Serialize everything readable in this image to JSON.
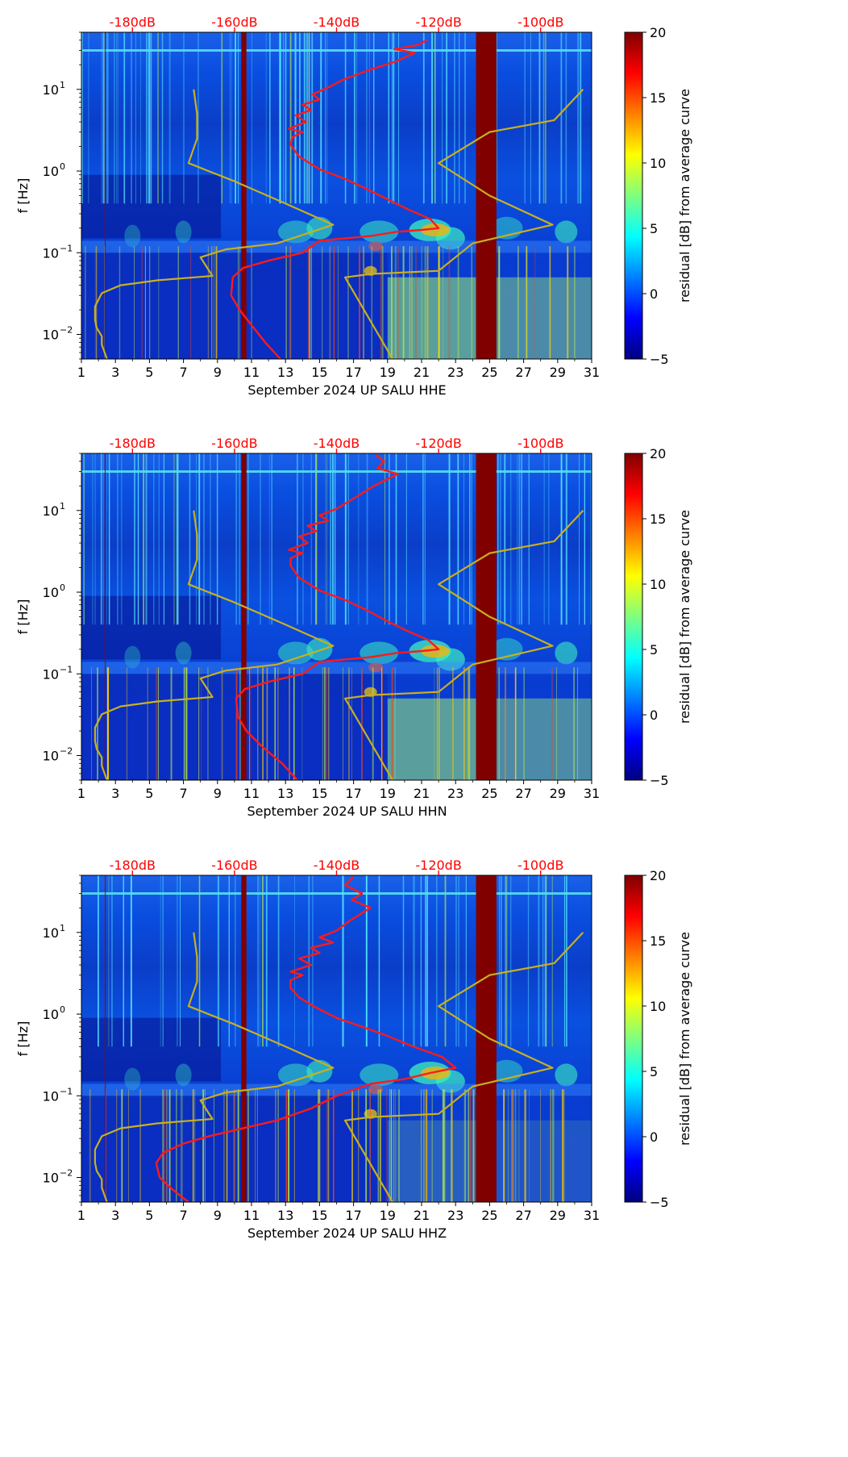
{
  "colors": {
    "psd_curve": "#ff1a1a",
    "model_curve": "#c8b020",
    "top_label": "#ff0000",
    "gap_band": "#800000",
    "background": "#00008f"
  },
  "colormap": [
    "#00007f",
    "#0000ff",
    "#007fff",
    "#00ffff",
    "#7fff7f",
    "#ffff00",
    "#ff7f00",
    "#ff0000",
    "#7f0000"
  ],
  "chart_data": [
    {
      "type": "heatmap",
      "title": "",
      "xlabel": "September 2024 UP SALU  HHE",
      "ylabel": "f [Hz]",
      "xlim": [
        1,
        31
      ],
      "ylim": [
        0.005,
        50
      ],
      "yscale": "log",
      "x_ticks": [
        "1",
        "3",
        "5",
        "7",
        "9",
        "11",
        "13",
        "15",
        "17",
        "19",
        "21",
        "23",
        "25",
        "27",
        "29",
        "31"
      ],
      "y_ticks": [
        {
          "value": 0.01,
          "base": "10",
          "exp": "−2"
        },
        {
          "value": 0.1,
          "base": "10",
          "exp": "−1"
        },
        {
          "value": 1,
          "base": "10",
          "exp": "0"
        },
        {
          "value": 10,
          "base": "10",
          "exp": "1"
        }
      ],
      "top_axis": [
        {
          "value": 4,
          "label": "-180dB"
        },
        {
          "value": 10,
          "label": "-160dB"
        },
        {
          "value": 16,
          "label": "-140dB"
        },
        {
          "value": 22,
          "label": "-120dB"
        },
        {
          "value": 28,
          "label": "-100dB"
        }
      ],
      "colorbar": {
        "label": "residual [dB] from average curve",
        "min": -5,
        "max": 20,
        "ticks": [
          "−5",
          "0",
          "5",
          "10",
          "15",
          "20"
        ]
      },
      "data_gaps": [
        [
          10.4,
          10.7
        ],
        [
          24.2,
          25.4
        ]
      ],
      "series": [
        {
          "name": "PSD average",
          "color": "#ff1a1a",
          "x": [
            12.7,
            11.8,
            11.0,
            10.3,
            9.8,
            9.9,
            10.5,
            12.0,
            14.0,
            15.0,
            16.5,
            18.0,
            19.5,
            21.0,
            22.0,
            21.5,
            20.2,
            19.0,
            17.8,
            16.5,
            15.0,
            13.8,
            13.3,
            13.4,
            14.0,
            13.2,
            14.2,
            13.6,
            14.5,
            14.0,
            15.0,
            14.6,
            15.5,
            16.5,
            18.0,
            19.5,
            20.6,
            19.4,
            20.8,
            21.3
          ],
          "y": [
            0.005,
            0.008,
            0.013,
            0.02,
            0.03,
            0.05,
            0.065,
            0.08,
            0.1,
            0.14,
            0.15,
            0.16,
            0.18,
            0.19,
            0.2,
            0.26,
            0.34,
            0.45,
            0.6,
            0.8,
            1.05,
            1.5,
            2.1,
            2.6,
            3.0,
            3.3,
            4.0,
            4.8,
            5.6,
            6.5,
            7.5,
            8.7,
            10.5,
            13.5,
            17.5,
            22.0,
            28.0,
            31.0,
            35.0,
            40.0
          ]
        },
        {
          "name": "noise model",
          "color": "#c8b020",
          "x": [
            2.5,
            2.2,
            2.2,
            1.9,
            1.8,
            1.8,
            2.2,
            3.3,
            5.5,
            8.7,
            8.0,
            9.5,
            12.5,
            15.8,
            13.0,
            10.0,
            7.3,
            7.8,
            7.8,
            7.6
          ],
          "y": [
            0.005,
            0.0075,
            0.0095,
            0.012,
            0.015,
            0.022,
            0.032,
            0.04,
            0.046,
            0.052,
            0.088,
            0.11,
            0.13,
            0.22,
            0.4,
            0.75,
            1.25,
            2.5,
            5.0,
            10.0
          ]
        },
        {
          "name": "noise model upper",
          "color": "#c8b020",
          "x": [
            19.3,
            16.5,
            18.0,
            22.0,
            24.0,
            28.7,
            25.0,
            22.0,
            25.0,
            28.8,
            30.5
          ],
          "y": [
            0.005,
            0.05,
            0.055,
            0.06,
            0.13,
            0.22,
            0.5,
            1.25,
            3.0,
            4.2,
            10.0
          ]
        }
      ]
    },
    {
      "type": "heatmap",
      "title": "",
      "xlabel": "September 2024 UP SALU  HHN",
      "ylabel": "f [Hz]",
      "xlim": [
        1,
        31
      ],
      "ylim": [
        0.005,
        50
      ],
      "yscale": "log",
      "x_ticks": [
        "1",
        "3",
        "5",
        "7",
        "9",
        "11",
        "13",
        "15",
        "17",
        "19",
        "21",
        "23",
        "25",
        "27",
        "29",
        "31"
      ],
      "y_ticks": [
        {
          "value": 0.01,
          "base": "10",
          "exp": "−2"
        },
        {
          "value": 0.1,
          "base": "10",
          "exp": "−1"
        },
        {
          "value": 1,
          "base": "10",
          "exp": "0"
        },
        {
          "value": 10,
          "base": "10",
          "exp": "1"
        }
      ],
      "top_axis": [
        {
          "value": 4,
          "label": "-180dB"
        },
        {
          "value": 10,
          "label": "-160dB"
        },
        {
          "value": 16,
          "label": "-140dB"
        },
        {
          "value": 22,
          "label": "-120dB"
        },
        {
          "value": 28,
          "label": "-100dB"
        }
      ],
      "colorbar": {
        "label": "residual [dB] from average curve",
        "min": -5,
        "max": 20,
        "ticks": [
          "−5",
          "0",
          "5",
          "10",
          "15",
          "20"
        ]
      },
      "data_gaps": [
        [
          10.4,
          10.7
        ],
        [
          24.2,
          25.4
        ]
      ],
      "series": [
        {
          "name": "PSD average",
          "color": "#ff1a1a",
          "x": [
            13.7,
            12.8,
            11.6,
            10.7,
            10.2,
            10.1,
            10.6,
            12.0,
            14.0,
            15.0,
            16.5,
            18.0,
            19.5,
            21.0,
            22.0,
            21.4,
            20.1,
            18.9,
            17.8,
            16.5,
            15.0,
            13.8,
            13.3,
            13.3,
            14.0,
            13.2,
            14.3,
            13.8,
            14.8,
            14.3,
            15.5,
            15.0,
            16.0,
            17.0,
            18.2,
            19.6,
            18.4,
            18.8,
            18.3
          ],
          "y": [
            0.005,
            0.008,
            0.013,
            0.02,
            0.03,
            0.05,
            0.065,
            0.08,
            0.1,
            0.14,
            0.15,
            0.16,
            0.18,
            0.19,
            0.2,
            0.26,
            0.34,
            0.45,
            0.6,
            0.8,
            1.05,
            1.5,
            2.1,
            2.6,
            3.0,
            3.3,
            4.0,
            4.8,
            5.6,
            6.5,
            7.5,
            8.7,
            10.5,
            14.0,
            20.0,
            28.0,
            33.0,
            40.0,
            48.0
          ]
        },
        {
          "name": "noise model",
          "color": "#c8b020",
          "x": [
            2.5,
            2.2,
            2.2,
            1.9,
            1.8,
            1.8,
            2.2,
            3.3,
            5.5,
            8.7,
            8.0,
            9.5,
            12.5,
            15.8,
            13.0,
            10.0,
            7.3,
            7.8,
            7.8,
            7.6
          ],
          "y": [
            0.005,
            0.0075,
            0.0095,
            0.012,
            0.015,
            0.022,
            0.032,
            0.04,
            0.046,
            0.052,
            0.088,
            0.11,
            0.13,
            0.22,
            0.4,
            0.75,
            1.25,
            2.5,
            5.0,
            10.0
          ]
        },
        {
          "name": "noise model upper",
          "color": "#c8b020",
          "x": [
            19.3,
            16.5,
            18.0,
            22.0,
            24.0,
            28.7,
            25.0,
            22.0,
            25.0,
            28.8,
            30.5
          ],
          "y": [
            0.005,
            0.05,
            0.055,
            0.06,
            0.13,
            0.22,
            0.5,
            1.25,
            3.0,
            4.2,
            10.0
          ]
        }
      ]
    },
    {
      "type": "heatmap",
      "title": "",
      "xlabel": "September 2024 UP SALU  HHZ",
      "ylabel": "f [Hz]",
      "xlim": [
        1,
        31
      ],
      "ylim": [
        0.005,
        50
      ],
      "yscale": "log",
      "x_ticks": [
        "1",
        "3",
        "5",
        "7",
        "9",
        "11",
        "13",
        "15",
        "17",
        "19",
        "21",
        "23",
        "25",
        "27",
        "29",
        "31"
      ],
      "y_ticks": [
        {
          "value": 0.01,
          "base": "10",
          "exp": "−2"
        },
        {
          "value": 0.1,
          "base": "10",
          "exp": "−1"
        },
        {
          "value": 1,
          "base": "10",
          "exp": "0"
        },
        {
          "value": 10,
          "base": "10",
          "exp": "1"
        }
      ],
      "top_axis": [
        {
          "value": 4,
          "label": "-180dB"
        },
        {
          "value": 10,
          "label": "-160dB"
        },
        {
          "value": 16,
          "label": "-140dB"
        },
        {
          "value": 22,
          "label": "-120dB"
        },
        {
          "value": 28,
          "label": "-100dB"
        }
      ],
      "colorbar": {
        "label": "residual [dB] from average curve",
        "min": -5,
        "max": 20,
        "ticks": [
          "−5",
          "0",
          "5",
          "10",
          "15",
          "20"
        ]
      },
      "data_gaps": [
        [
          10.4,
          10.7
        ],
        [
          24.2,
          25.4
        ]
      ],
      "series": [
        {
          "name": "PSD average",
          "color": "#ff1a1a",
          "x": [
            7.3,
            6.4,
            5.6,
            5.4,
            5.8,
            7.0,
            8.5,
            10.5,
            12.5,
            14.5,
            16.0,
            18.0,
            20.0,
            21.5,
            23.0,
            22.2,
            20.5,
            18.9,
            17.5,
            16.0,
            14.8,
            13.8,
            13.3,
            13.3,
            14.0,
            13.3,
            14.5,
            13.8,
            15.0,
            14.5,
            15.8,
            15.0,
            16.0,
            16.8,
            18.0,
            16.9,
            17.5,
            16.5,
            17.0
          ],
          "y": [
            0.005,
            0.007,
            0.01,
            0.015,
            0.02,
            0.026,
            0.032,
            0.04,
            0.05,
            0.07,
            0.1,
            0.14,
            0.16,
            0.19,
            0.22,
            0.3,
            0.4,
            0.55,
            0.7,
            0.9,
            1.2,
            1.6,
            2.1,
            2.6,
            3.0,
            3.3,
            4.0,
            4.8,
            5.6,
            6.5,
            7.5,
            8.7,
            10.5,
            14.0,
            20.0,
            25.0,
            30.0,
            38.0,
            48.0
          ]
        },
        {
          "name": "noise model",
          "color": "#c8b020",
          "x": [
            2.5,
            2.2,
            2.2,
            1.9,
            1.8,
            1.8,
            2.2,
            3.3,
            5.5,
            8.7,
            8.0,
            9.5,
            12.5,
            15.8,
            13.0,
            10.0,
            7.3,
            7.8,
            7.8,
            7.6
          ],
          "y": [
            0.005,
            0.0075,
            0.0095,
            0.012,
            0.015,
            0.022,
            0.032,
            0.04,
            0.046,
            0.052,
            0.088,
            0.11,
            0.13,
            0.22,
            0.4,
            0.75,
            1.25,
            2.5,
            5.0,
            10.0
          ]
        },
        {
          "name": "noise model upper",
          "color": "#c8b020",
          "x": [
            19.3,
            16.5,
            18.0,
            22.0,
            24.0,
            28.7,
            25.0,
            22.0,
            25.0,
            28.8,
            30.5
          ],
          "y": [
            0.005,
            0.05,
            0.055,
            0.06,
            0.13,
            0.22,
            0.5,
            1.25,
            3.0,
            4.2,
            10.0
          ]
        }
      ]
    }
  ]
}
